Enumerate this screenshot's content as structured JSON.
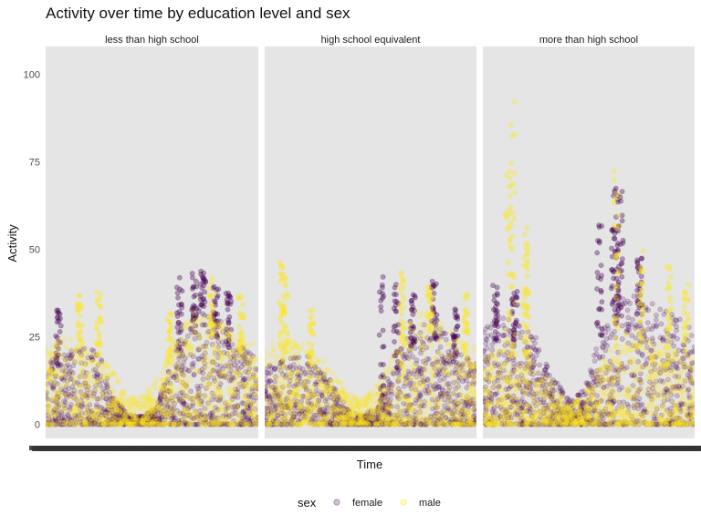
{
  "chart_data": {
    "type": "scatter",
    "title": "Activity over time by education level and sex",
    "xlabel": "Time",
    "ylabel": "Activity",
    "ylim": [
      -4,
      108
    ],
    "yticks": [
      0,
      25,
      50,
      75,
      100
    ],
    "x_tick_labels_overplotted": true,
    "panel_background": "#e5e5e5",
    "point_alpha": 0.2,
    "facets": [
      {
        "label": "less than high school",
        "series": [
          {
            "name": "female",
            "color": "#440154",
            "profile": [
              [
                0,
                14
              ],
              [
                0.08,
                16
              ],
              [
                0.15,
                18
              ],
              [
                0.25,
                17
              ],
              [
                0.32,
                6
              ],
              [
                0.4,
                2
              ],
              [
                0.46,
                2
              ],
              [
                0.52,
                4
              ],
              [
                0.56,
                10
              ],
              [
                0.62,
                20
              ],
              [
                0.72,
                27
              ],
              [
                0.82,
                24
              ],
              [
                0.92,
                18
              ],
              [
                1,
                15
              ]
            ],
            "peaks": [
              [
                0.63,
                42
              ],
              [
                0.7,
                45
              ],
              [
                0.74,
                44
              ],
              [
                0.8,
                40
              ],
              [
                0.86,
                38
              ],
              [
                0.06,
                33
              ]
            ]
          },
          {
            "name": "male",
            "color": "#fde725",
            "profile": [
              [
                0,
                18
              ],
              [
                0.08,
                20
              ],
              [
                0.15,
                19
              ],
              [
                0.25,
                16
              ],
              [
                0.32,
                12
              ],
              [
                0.4,
                6
              ],
              [
                0.46,
                7
              ],
              [
                0.52,
                10
              ],
              [
                0.58,
                17
              ],
              [
                0.66,
                26
              ],
              [
                0.76,
                25
              ],
              [
                0.86,
                22
              ],
              [
                0.95,
                19
              ],
              [
                1,
                18
              ]
            ],
            "peaks": [
              [
                0.16,
                37
              ],
              [
                0.25,
                39
              ],
              [
                0.58,
                33
              ],
              [
                0.78,
                43
              ],
              [
                0.92,
                37
              ]
            ]
          }
        ]
      },
      {
        "label": "high school equivalent",
        "series": [
          {
            "name": "female",
            "color": "#440154",
            "profile": [
              [
                0,
                13
              ],
              [
                0.1,
                15
              ],
              [
                0.2,
                16
              ],
              [
                0.3,
                11
              ],
              [
                0.4,
                3
              ],
              [
                0.47,
                2
              ],
              [
                0.54,
                5
              ],
              [
                0.6,
                14
              ],
              [
                0.7,
                22
              ],
              [
                0.8,
                24
              ],
              [
                0.9,
                18
              ],
              [
                1,
                14
              ]
            ],
            "peaks": [
              [
                0.55,
                44
              ],
              [
                0.62,
                40
              ],
              [
                0.7,
                39
              ],
              [
                0.8,
                42
              ],
              [
                0.9,
                34
              ]
            ]
          },
          {
            "name": "male",
            "color": "#fde725",
            "profile": [
              [
                0,
                18
              ],
              [
                0.1,
                20
              ],
              [
                0.2,
                18
              ],
              [
                0.3,
                14
              ],
              [
                0.4,
                7
              ],
              [
                0.47,
                6
              ],
              [
                0.54,
                10
              ],
              [
                0.62,
                18
              ],
              [
                0.72,
                26
              ],
              [
                0.82,
                24
              ],
              [
                0.92,
                20
              ],
              [
                1,
                18
              ]
            ],
            "peaks": [
              [
                0.08,
                47
              ],
              [
                0.1,
                42
              ],
              [
                0.22,
                34
              ],
              [
                0.65,
                44
              ],
              [
                0.78,
                40
              ],
              [
                0.95,
                38
              ]
            ]
          }
        ]
      },
      {
        "label": "more than high school",
        "series": [
          {
            "name": "female",
            "color": "#440154",
            "profile": [
              [
                0,
                22
              ],
              [
                0.08,
                25
              ],
              [
                0.15,
                24
              ],
              [
                0.25,
                20
              ],
              [
                0.32,
                12
              ],
              [
                0.4,
                6
              ],
              [
                0.46,
                7
              ],
              [
                0.52,
                15
              ],
              [
                0.6,
                28
              ],
              [
                0.7,
                30
              ],
              [
                0.8,
                28
              ],
              [
                0.9,
                25
              ],
              [
                1,
                22
              ]
            ],
            "peaks": [
              [
                0.06,
                40
              ],
              [
                0.15,
                38
              ],
              [
                0.55,
                58
              ],
              [
                0.62,
                60
              ],
              [
                0.63,
                68
              ],
              [
                0.65,
                72
              ],
              [
                0.74,
                48
              ]
            ]
          },
          {
            "name": "male",
            "color": "#fde725",
            "profile": [
              [
                0,
                15
              ],
              [
                0.08,
                18
              ],
              [
                0.15,
                17
              ],
              [
                0.25,
                14
              ],
              [
                0.32,
                10
              ],
              [
                0.4,
                5
              ],
              [
                0.46,
                6
              ],
              [
                0.52,
                10
              ],
              [
                0.6,
                18
              ],
              [
                0.7,
                22
              ],
              [
                0.8,
                20
              ],
              [
                0.9,
                17
              ],
              [
                1,
                15
              ]
            ],
            "peaks": [
              [
                0.12,
                72
              ],
              [
                0.14,
                104
              ],
              [
                0.2,
                58
              ],
              [
                0.21,
                52
              ],
              [
                0.63,
                74
              ],
              [
                0.75,
                50
              ],
              [
                0.88,
                46
              ],
              [
                0.96,
                40
              ]
            ]
          }
        ]
      }
    ],
    "legend": {
      "title": "sex",
      "position": "bottom",
      "entries": [
        {
          "label": "female",
          "color": "#440154"
        },
        {
          "label": "male",
          "color": "#fde725"
        }
      ]
    }
  }
}
